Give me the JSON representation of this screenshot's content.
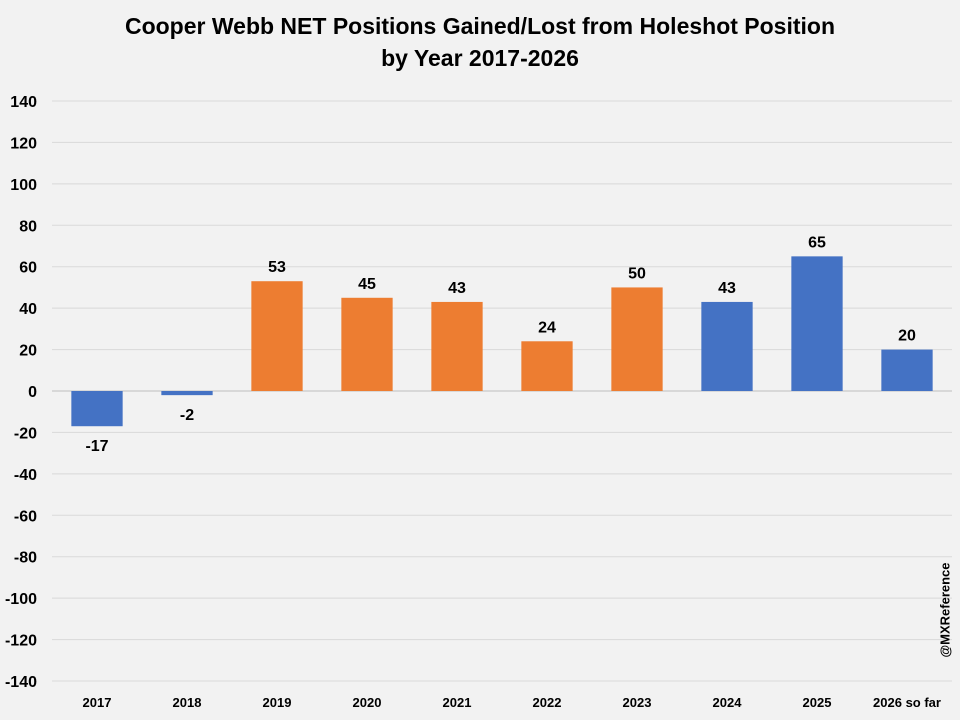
{
  "chart_data": {
    "type": "bar",
    "title_lines": [
      "Cooper Webb NET Positions Gained/Lost from Holeshot Position",
      "by Year 2017-2026"
    ],
    "categories": [
      "2017",
      "2018",
      "2019",
      "2020",
      "2021",
      "2022",
      "2023",
      "2024",
      "2025",
      "2026 so far"
    ],
    "values": [
      -17,
      -2,
      53,
      45,
      43,
      24,
      50,
      43,
      65,
      20
    ],
    "data_labels": [
      "-17",
      "-2",
      "53",
      "45",
      "43",
      "24",
      "50",
      "43",
      "65",
      "20"
    ],
    "bar_colors": [
      "#4472c4",
      "#4472c4",
      "#ed7d31",
      "#ed7d31",
      "#ed7d31",
      "#ed7d31",
      "#ed7d31",
      "#4472c4",
      "#4472c4",
      "#4472c4"
    ],
    "ylim": [
      -140,
      140
    ],
    "yticks": [
      140,
      120,
      100,
      80,
      60,
      40,
      20,
      0,
      -20,
      -40,
      -60,
      -80,
      -100,
      -120,
      -140
    ],
    "ytick_labels": [
      "140",
      "120",
      "100",
      "80",
      "60",
      "40",
      "20",
      "0",
      "-20",
      "-40",
      "-60",
      "-80",
      "-100",
      "-120",
      "-140"
    ],
    "xlabel": "",
    "ylabel": "",
    "grid": true,
    "legend": "none",
    "watermark": "@MXReference"
  },
  "colors": {
    "background": "#f2f2f2",
    "gridline": "#d9d9d9",
    "axis_line": "#bfbfbf",
    "text": "#000000"
  }
}
